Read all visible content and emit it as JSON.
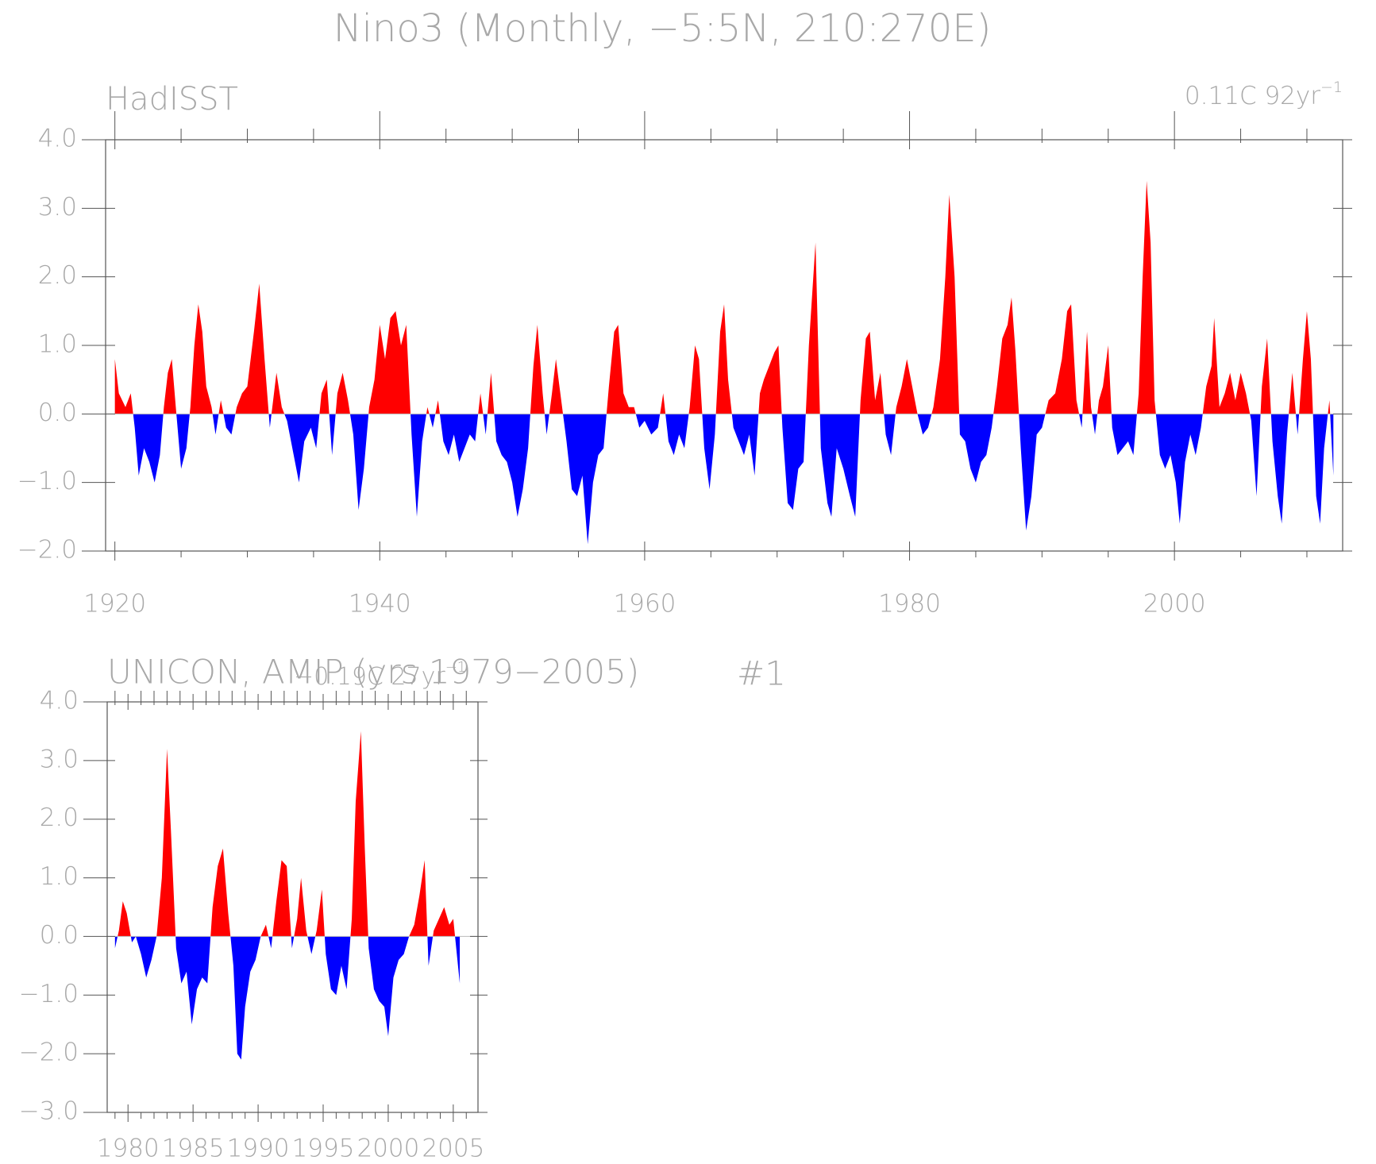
{
  "title": "Nino3 (Monthly, −5:5N, 210:270E)",
  "figure_label": "#1",
  "chart_data": [
    {
      "type": "area",
      "title": "HadISST",
      "trend": {
        "text": "0.11C 92yr",
        "superscript": "−1"
      },
      "positive_color": "#ff0000",
      "negative_color": "#0000ff",
      "xlim": [
        1919.3,
        2012.7
      ],
      "ylim": [
        -2,
        4
      ],
      "xticks": [
        1920,
        1940,
        1960,
        1980,
        2000
      ],
      "xminorticks": [
        1925,
        1930,
        1935,
        1945,
        1950,
        1955,
        1965,
        1970,
        1975,
        1985,
        1990,
        1995,
        2005,
        2010
      ],
      "yticks": [
        {
          "value": -2,
          "label": "−2.0"
        },
        {
          "value": -1,
          "label": "−1.0"
        },
        {
          "value": 0,
          "label": "0.0"
        },
        {
          "value": 1,
          "label": "1.0"
        },
        {
          "value": 2,
          "label": "2.0"
        },
        {
          "value": 3,
          "label": "3.0"
        },
        {
          "value": 4,
          "label": "4.0"
        }
      ],
      "x": [
        1920.0,
        1920.3,
        1920.8,
        1921.2,
        1921.5,
        1921.8,
        1922.2,
        1922.6,
        1923.0,
        1923.4,
        1923.7,
        1924.0,
        1924.3,
        1924.6,
        1925.0,
        1925.4,
        1925.7,
        1926.0,
        1926.3,
        1926.6,
        1926.9,
        1927.3,
        1927.6,
        1928.0,
        1928.4,
        1928.8,
        1929.2,
        1929.6,
        1930.0,
        1930.5,
        1930.9,
        1931.3,
        1931.7,
        1932.2,
        1932.6,
        1933.0,
        1933.5,
        1933.9,
        1934.3,
        1934.8,
        1935.2,
        1935.6,
        1936.0,
        1936.4,
        1936.8,
        1937.2,
        1937.6,
        1938.0,
        1938.4,
        1938.8,
        1939.2,
        1939.6,
        1940.0,
        1940.4,
        1940.8,
        1941.2,
        1941.6,
        1942.0,
        1942.4,
        1942.8,
        1943.2,
        1943.6,
        1944.0,
        1944.4,
        1944.8,
        1945.2,
        1945.6,
        1946.0,
        1946.4,
        1946.8,
        1947.2,
        1947.6,
        1948.0,
        1948.4,
        1948.8,
        1949.2,
        1949.6,
        1950.0,
        1950.4,
        1950.8,
        1951.2,
        1951.6,
        1951.9,
        1952.3,
        1952.6,
        1953.0,
        1953.3,
        1953.7,
        1954.1,
        1954.5,
        1954.9,
        1955.3,
        1955.7,
        1956.1,
        1956.5,
        1956.9,
        1957.3,
        1957.7,
        1958.0,
        1958.4,
        1958.8,
        1959.2,
        1959.6,
        1960.0,
        1960.5,
        1961.0,
        1961.4,
        1961.8,
        1962.2,
        1962.6,
        1963.0,
        1963.4,
        1963.8,
        1964.1,
        1964.5,
        1964.9,
        1965.3,
        1965.7,
        1966.0,
        1966.3,
        1966.7,
        1967.1,
        1967.5,
        1967.9,
        1968.3,
        1968.7,
        1969.0,
        1969.4,
        1969.8,
        1970.1,
        1970.4,
        1970.8,
        1971.2,
        1971.6,
        1972.0,
        1972.4,
        1972.9,
        1973.3,
        1973.8,
        1974.1,
        1974.5,
        1975.0,
        1975.5,
        1975.9,
        1976.3,
        1976.7,
        1977.0,
        1977.4,
        1977.8,
        1978.2,
        1978.6,
        1979.0,
        1979.4,
        1979.8,
        1980.2,
        1980.6,
        1981.0,
        1981.4,
        1981.8,
        1982.3,
        1982.7,
        1983.0,
        1983.4,
        1983.8,
        1984.2,
        1984.6,
        1985.0,
        1985.4,
        1985.8,
        1986.2,
        1986.6,
        1987.0,
        1987.4,
        1987.7,
        1988.0,
        1988.4,
        1988.8,
        1989.2,
        1989.6,
        1990.0,
        1990.5,
        1991.0,
        1991.5,
        1991.9,
        1992.2,
        1992.6,
        1993.0,
        1993.4,
        1993.7,
        1994.0,
        1994.3,
        1994.6,
        1995.0,
        1995.3,
        1995.7,
        1996.1,
        1996.5,
        1996.9,
        1997.3,
        1997.6,
        1997.9,
        1998.2,
        1998.5,
        1998.9,
        1999.3,
        1999.7,
        2000.1,
        2000.4,
        2000.8,
        2001.2,
        2001.6,
        2002.0,
        2002.4,
        2002.8,
        2003.0,
        2003.4,
        2003.8,
        2004.2,
        2004.6,
        2005.0,
        2005.4,
        2005.8,
        2006.2,
        2006.6,
        2007.0,
        2007.4,
        2007.8,
        2008.1,
        2008.5,
        2008.9,
        2009.3,
        2009.7,
        2010.0,
        2010.3,
        2010.7,
        2011.0,
        2011.3,
        2011.7,
        2012.0
      ],
      "values": [
        0.8,
        0.3,
        0.1,
        0.3,
        -0.2,
        -0.9,
        -0.5,
        -0.7,
        -1.0,
        -0.6,
        0.1,
        0.6,
        0.8,
        0.1,
        -0.8,
        -0.5,
        0.1,
        1.0,
        1.6,
        1.2,
        0.4,
        0.1,
        -0.3,
        0.2,
        -0.2,
        -0.3,
        0.1,
        0.3,
        0.4,
        1.2,
        1.9,
        0.8,
        -0.2,
        0.6,
        0.1,
        -0.1,
        -0.6,
        -1.0,
        -0.4,
        -0.2,
        -0.5,
        0.3,
        0.5,
        -0.6,
        0.3,
        0.6,
        0.2,
        -0.3,
        -1.4,
        -0.8,
        0.1,
        0.5,
        1.3,
        0.8,
        1.4,
        1.5,
        1.0,
        1.3,
        -0.3,
        -1.5,
        -0.4,
        0.1,
        -0.2,
        0.2,
        -0.4,
        -0.6,
        -0.3,
        -0.7,
        -0.5,
        -0.3,
        -0.4,
        0.3,
        -0.3,
        0.6,
        -0.4,
        -0.6,
        -0.7,
        -1.0,
        -1.5,
        -1.1,
        -0.5,
        0.7,
        1.3,
        0.3,
        -0.3,
        0.3,
        0.8,
        0.2,
        -0.4,
        -1.1,
        -1.2,
        -0.9,
        -1.9,
        -1.0,
        -0.6,
        -0.5,
        0.4,
        1.2,
        1.3,
        0.3,
        0.1,
        0.1,
        -0.2,
        -0.1,
        -0.3,
        -0.2,
        0.3,
        -0.4,
        -0.6,
        -0.3,
        -0.5,
        0.1,
        1.0,
        0.8,
        -0.5,
        -1.1,
        -0.3,
        1.2,
        1.6,
        0.5,
        -0.2,
        -0.4,
        -0.6,
        -0.3,
        -0.9,
        0.3,
        0.5,
        0.7,
        0.9,
        1.0,
        -0.2,
        -1.3,
        -1.4,
        -0.8,
        -0.7,
        1.0,
        2.5,
        -0.5,
        -1.3,
        -1.5,
        -0.5,
        -0.8,
        -1.2,
        -1.5,
        0.2,
        1.1,
        1.2,
        0.2,
        0.6,
        -0.3,
        -0.6,
        0.1,
        0.4,
        0.8,
        0.4,
        0.0,
        -0.3,
        -0.2,
        0.1,
        0.8,
        2.0,
        3.2,
        2.0,
        -0.3,
        -0.4,
        -0.8,
        -1.0,
        -0.7,
        -0.6,
        -0.2,
        0.4,
        1.1,
        1.3,
        1.7,
        0.9,
        -0.5,
        -1.7,
        -1.2,
        -0.3,
        -0.2,
        0.2,
        0.3,
        0.8,
        1.5,
        1.6,
        0.2,
        -0.2,
        1.2,
        0.1,
        -0.3,
        0.2,
        0.4,
        1.0,
        -0.2,
        -0.6,
        -0.5,
        -0.4,
        -0.6,
        0.3,
        2.0,
        3.4,
        2.5,
        0.2,
        -0.6,
        -0.8,
        -0.6,
        -1.0,
        -1.6,
        -0.7,
        -0.3,
        -0.6,
        -0.2,
        0.4,
        0.7,
        1.4,
        0.1,
        0.3,
        0.6,
        0.2,
        0.6,
        0.3,
        -0.1,
        -1.2,
        0.4,
        1.1,
        -0.4,
        -1.2,
        -1.6,
        -0.3,
        0.6,
        -0.3,
        0.8,
        1.5,
        0.8,
        -1.2,
        -1.6,
        -0.5,
        0.2,
        -0.9
      ]
    },
    {
      "type": "area",
      "title": "UNICON, AMIP (yrs 1979−2005)",
      "trend": {
        "text": "−0.19C 27yr",
        "superscript": "−1"
      },
      "positive_color": "#ff0000",
      "negative_color": "#0000ff",
      "xlim": [
        1978.4,
        2006.9
      ],
      "ylim": [
        -3,
        4
      ],
      "xticks": [
        1980,
        1985,
        1990,
        1995,
        2000,
        2005
      ],
      "xminorticks": [
        1979,
        1981,
        1982,
        1983,
        1984,
        1986,
        1987,
        1988,
        1989,
        1991,
        1992,
        1993,
        1994,
        1996,
        1997,
        1998,
        1999,
        2001,
        2002,
        2003,
        2004,
        2006
      ],
      "yticks": [
        {
          "value": -3,
          "label": "−3.0"
        },
        {
          "value": -2,
          "label": "−2.0"
        },
        {
          "value": -1,
          "label": "−1.0"
        },
        {
          "value": 0,
          "label": "0.0"
        },
        {
          "value": 1,
          "label": "1.0"
        },
        {
          "value": 2,
          "label": "2.0"
        },
        {
          "value": 3,
          "label": "3.0"
        },
        {
          "value": 4,
          "label": "4.0"
        }
      ],
      "x": [
        1979.0,
        1979.3,
        1979.6,
        1979.9,
        1980.3,
        1980.6,
        1981.0,
        1981.4,
        1981.8,
        1982.2,
        1982.6,
        1983.0,
        1983.3,
        1983.7,
        1984.1,
        1984.5,
        1984.9,
        1985.3,
        1985.7,
        1986.1,
        1986.5,
        1986.9,
        1987.3,
        1987.7,
        1988.1,
        1988.4,
        1988.7,
        1989.0,
        1989.4,
        1989.8,
        1990.2,
        1990.6,
        1991.0,
        1991.4,
        1991.8,
        1992.2,
        1992.6,
        1993.0,
        1993.3,
        1993.7,
        1994.1,
        1994.5,
        1994.9,
        1995.2,
        1995.6,
        1996.0,
        1996.4,
        1996.8,
        1997.2,
        1997.5,
        1997.9,
        1998.2,
        1998.5,
        1998.9,
        1999.3,
        1999.7,
        2000.0,
        2000.4,
        2000.8,
        2001.2,
        2001.6,
        2002.0,
        2002.4,
        2002.8,
        2003.1,
        2003.5,
        2003.9,
        2004.3,
        2004.7,
        2005.0,
        2005.5
      ],
      "values": [
        -0.2,
        0.1,
        0.6,
        0.4,
        -0.1,
        0.0,
        -0.3,
        -0.7,
        -0.4,
        0.0,
        1.0,
        3.2,
        1.8,
        -0.2,
        -0.8,
        -0.6,
        -1.5,
        -0.9,
        -0.7,
        -0.8,
        0.5,
        1.2,
        1.5,
        0.4,
        -0.5,
        -2.0,
        -2.1,
        -1.2,
        -0.6,
        -0.4,
        0.0,
        0.2,
        -0.2,
        0.6,
        1.3,
        1.2,
        -0.2,
        0.3,
        1.0,
        0.1,
        -0.3,
        0.1,
        0.8,
        -0.3,
        -0.9,
        -1.0,
        -0.5,
        -0.9,
        0.3,
        2.3,
        3.5,
        1.5,
        -0.2,
        -0.9,
        -1.1,
        -1.2,
        -1.7,
        -0.7,
        -0.4,
        -0.3,
        0.0,
        0.2,
        0.7,
        1.3,
        -0.5,
        0.1,
        0.3,
        0.5,
        0.2,
        0.3,
        -0.8
      ]
    }
  ]
}
